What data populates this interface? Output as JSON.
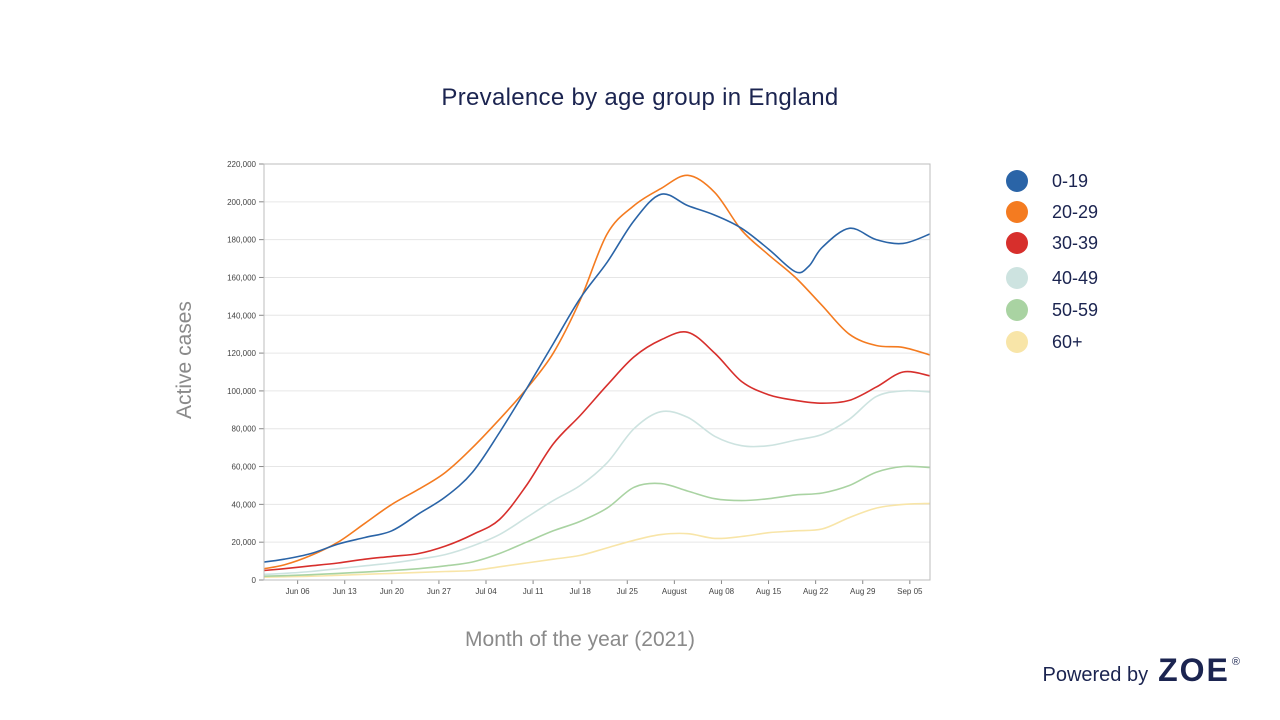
{
  "brand": {
    "powered_by": "Powered by",
    "logo": "ZOE",
    "registered": "®"
  },
  "chart_data": {
    "type": "line",
    "title": "Prevalence by age group in England",
    "xlabel": "Month of the year (2021)",
    "ylabel": "Active cases",
    "ylim": [
      0,
      220000
    ],
    "yticks": [
      0,
      20000,
      40000,
      60000,
      80000,
      100000,
      120000,
      140000,
      160000,
      180000,
      200000,
      220000
    ],
    "ytick_labels": [
      "0",
      "20,000",
      "40,000",
      "60,000",
      "80,000",
      "100,000",
      "120,000",
      "140,000",
      "160,000",
      "180,000",
      "200,000",
      "220,000"
    ],
    "xlim": [
      "2021-06-01",
      "2021-09-08"
    ],
    "xticks": [
      "2021-06-06",
      "2021-06-13",
      "2021-06-20",
      "2021-06-27",
      "2021-07-04",
      "2021-07-11",
      "2021-07-18",
      "2021-07-25",
      "2021-08-01",
      "2021-08-08",
      "2021-08-15",
      "2021-08-22",
      "2021-08-29",
      "2021-09-05"
    ],
    "xtick_labels": [
      "Jun 06",
      "Jun 13",
      "Jun 20",
      "Jun 27",
      "Jul 04",
      "Jul 11",
      "Jul 18",
      "Jul 25",
      "August",
      "Aug 08",
      "Aug 15",
      "Aug 22",
      "Aug 29",
      "Sep 05"
    ],
    "grid": true,
    "legend_position": "right",
    "series": [
      {
        "name": "0-19",
        "color": "#2a64a7",
        "x": [
          "2021-06-01",
          "2021-06-04",
          "2021-06-08",
          "2021-06-12",
          "2021-06-16",
          "2021-06-20",
          "2021-06-24",
          "2021-06-28",
          "2021-07-02",
          "2021-07-06",
          "2021-07-10",
          "2021-07-14",
          "2021-07-18",
          "2021-07-22",
          "2021-07-26",
          "2021-07-30",
          "2021-08-03",
          "2021-08-07",
          "2021-08-11",
          "2021-08-15",
          "2021-08-19",
          "2021-08-21",
          "2021-08-23",
          "2021-08-27",
          "2021-08-31",
          "2021-09-04",
          "2021-09-08"
        ],
        "y": [
          9500,
          11000,
          14000,
          19000,
          22500,
          26000,
          35000,
          44000,
          57000,
          78000,
          101000,
          125000,
          149000,
          168000,
          190000,
          204000,
          198000,
          193000,
          186000,
          175000,
          163000,
          166000,
          176000,
          186000,
          180000,
          178000,
          183000
        ]
      },
      {
        "name": "20-29",
        "color": "#f47b20",
        "x": [
          "2021-06-01",
          "2021-06-04",
          "2021-06-08",
          "2021-06-12",
          "2021-06-16",
          "2021-06-20",
          "2021-06-24",
          "2021-06-28",
          "2021-07-02",
          "2021-07-06",
          "2021-07-10",
          "2021-07-14",
          "2021-07-18",
          "2021-07-22",
          "2021-07-26",
          "2021-07-30",
          "2021-08-03",
          "2021-08-07",
          "2021-08-11",
          "2021-08-15",
          "2021-08-19",
          "2021-08-23",
          "2021-08-27",
          "2021-08-31",
          "2021-09-04",
          "2021-09-08"
        ],
        "y": [
          6000,
          8000,
          13000,
          20000,
          30000,
          40000,
          48000,
          57000,
          70000,
          85000,
          101000,
          120000,
          148000,
          183000,
          198000,
          207000,
          214000,
          205000,
          185000,
          172000,
          160000,
          145000,
          130000,
          124000,
          123000,
          119000
        ]
      },
      {
        "name": "30-39",
        "color": "#d72f2c",
        "x": [
          "2021-06-01",
          "2021-06-04",
          "2021-06-08",
          "2021-06-12",
          "2021-06-16",
          "2021-06-20",
          "2021-06-24",
          "2021-06-28",
          "2021-07-02",
          "2021-07-06",
          "2021-07-10",
          "2021-07-14",
          "2021-07-18",
          "2021-07-22",
          "2021-07-26",
          "2021-07-30",
          "2021-08-03",
          "2021-08-07",
          "2021-08-11",
          "2021-08-15",
          "2021-08-19",
          "2021-08-23",
          "2021-08-27",
          "2021-08-31",
          "2021-09-04",
          "2021-09-08"
        ],
        "y": [
          5000,
          6000,
          7500,
          9000,
          11000,
          12500,
          14000,
          18000,
          24000,
          32000,
          50000,
          72000,
          87000,
          103000,
          118000,
          127000,
          131000,
          120000,
          105000,
          98000,
          95000,
          93500,
          95000,
          102000,
          110000,
          108000
        ]
      },
      {
        "name": "40-49",
        "color": "#cde3e0",
        "x": [
          "2021-06-01",
          "2021-06-04",
          "2021-06-08",
          "2021-06-12",
          "2021-06-16",
          "2021-06-20",
          "2021-06-24",
          "2021-06-28",
          "2021-07-02",
          "2021-07-06",
          "2021-07-10",
          "2021-07-14",
          "2021-07-18",
          "2021-07-22",
          "2021-07-26",
          "2021-07-30",
          "2021-08-03",
          "2021-08-07",
          "2021-08-11",
          "2021-08-15",
          "2021-08-19",
          "2021-08-23",
          "2021-08-27",
          "2021-08-31",
          "2021-09-04",
          "2021-09-08"
        ],
        "y": [
          3000,
          3500,
          4500,
          6000,
          7500,
          9000,
          11000,
          13500,
          18000,
          24000,
          33000,
          42000,
          50000,
          62000,
          80000,
          89000,
          86000,
          76000,
          71000,
          71000,
          74000,
          77000,
          85000,
          97000,
          100000,
          99500
        ]
      },
      {
        "name": "50-59",
        "color": "#a9d3a2",
        "x": [
          "2021-06-01",
          "2021-06-04",
          "2021-06-08",
          "2021-06-12",
          "2021-06-16",
          "2021-06-20",
          "2021-06-24",
          "2021-06-28",
          "2021-07-02",
          "2021-07-06",
          "2021-07-10",
          "2021-07-14",
          "2021-07-18",
          "2021-07-22",
          "2021-07-26",
          "2021-07-30",
          "2021-08-03",
          "2021-08-07",
          "2021-08-11",
          "2021-08-15",
          "2021-08-19",
          "2021-08-23",
          "2021-08-27",
          "2021-08-31",
          "2021-09-04",
          "2021-09-08"
        ],
        "y": [
          2000,
          2300,
          2800,
          3500,
          4200,
          5000,
          6000,
          7500,
          9500,
          14000,
          20000,
          26000,
          31000,
          38000,
          49000,
          51000,
          47000,
          43000,
          42000,
          43000,
          45000,
          46000,
          50000,
          57000,
          60000,
          59500
        ]
      },
      {
        "name": "60+",
        "color": "#f8e5a8",
        "x": [
          "2021-06-01",
          "2021-06-04",
          "2021-06-08",
          "2021-06-12",
          "2021-06-16",
          "2021-06-20",
          "2021-06-24",
          "2021-06-28",
          "2021-07-02",
          "2021-07-06",
          "2021-07-10",
          "2021-07-14",
          "2021-07-18",
          "2021-07-22",
          "2021-07-26",
          "2021-07-30",
          "2021-08-03",
          "2021-08-07",
          "2021-08-11",
          "2021-08-15",
          "2021-08-19",
          "2021-08-23",
          "2021-08-27",
          "2021-08-31",
          "2021-09-04",
          "2021-09-08"
        ],
        "y": [
          1500,
          1700,
          2000,
          2500,
          3000,
          3500,
          4000,
          4500,
          5000,
          7000,
          9000,
          11000,
          13000,
          17000,
          21000,
          24000,
          24500,
          22000,
          23000,
          25000,
          26000,
          27000,
          33000,
          38000,
          40000,
          40500
        ]
      }
    ]
  }
}
